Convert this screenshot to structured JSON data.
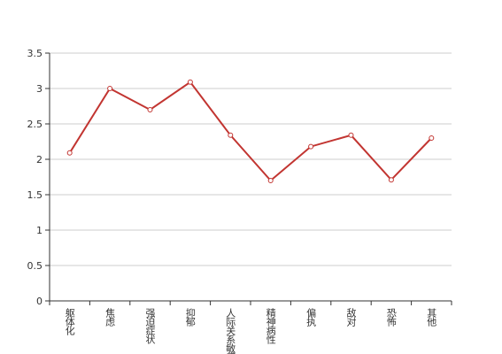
{
  "chart_data": {
    "type": "line",
    "categories": [
      "躯体化",
      "焦虑",
      "强迫症状",
      "抑郁",
      "人际关系敏感",
      "精神病性",
      "偏执",
      "敌对",
      "恐怖",
      "其他"
    ],
    "values": [
      2.09,
      3.0,
      2.7,
      3.09,
      2.34,
      1.7,
      2.18,
      2.34,
      1.71,
      2.3
    ],
    "color": "#c23531",
    "ylim": [
      0,
      3.5
    ],
    "yticks": [
      0,
      0.5,
      1,
      1.5,
      2,
      2.5,
      3,
      3.5
    ],
    "grid": true
  }
}
